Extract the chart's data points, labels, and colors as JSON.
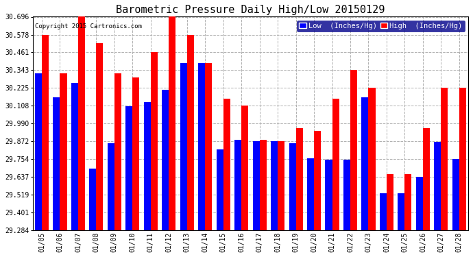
{
  "title": "Barometric Pressure Daily High/Low 20150129",
  "copyright": "Copyright 2015 Cartronics.com",
  "legend_low": "Low  (Inches/Hg)",
  "legend_high": "High  (Inches/Hg)",
  "dates": [
    "01/05",
    "01/06",
    "01/07",
    "01/08",
    "01/09",
    "01/10",
    "01/11",
    "01/12",
    "01/13",
    "01/14",
    "01/15",
    "01/16",
    "01/17",
    "01/18",
    "01/19",
    "01/20",
    "01/21",
    "01/22",
    "01/23",
    "01/24",
    "01/25",
    "01/26",
    "01/27",
    "01/28"
  ],
  "low_values": [
    30.32,
    30.165,
    30.26,
    29.69,
    29.86,
    30.105,
    30.13,
    30.215,
    30.39,
    30.39,
    29.82,
    29.88,
    29.875,
    29.875,
    29.86,
    29.76,
    29.75,
    29.75,
    30.165,
    29.53,
    29.53,
    29.635,
    29.87,
    29.755
  ],
  "high_values": [
    30.578,
    30.32,
    30.696,
    30.52,
    30.32,
    30.295,
    30.461,
    30.696,
    30.578,
    30.39,
    30.155,
    30.108,
    29.882,
    29.872,
    29.96,
    29.94,
    30.155,
    30.343,
    30.225,
    29.656,
    29.656,
    29.96,
    30.225,
    30.225
  ],
  "ylim": [
    29.284,
    30.696
  ],
  "yticks": [
    29.284,
    29.401,
    29.519,
    29.637,
    29.754,
    29.872,
    29.99,
    30.108,
    30.225,
    30.343,
    30.461,
    30.578,
    30.696
  ],
  "bar_color_low": "#0000ff",
  "bar_color_high": "#ff0000",
  "bg_color": "#ffffff",
  "grid_color": "#b0b0b0",
  "title_fontsize": 11,
  "legend_fontsize": 7.5,
  "tick_fontsize": 7,
  "fig_width": 6.9,
  "fig_height": 3.75,
  "dpi": 100
}
